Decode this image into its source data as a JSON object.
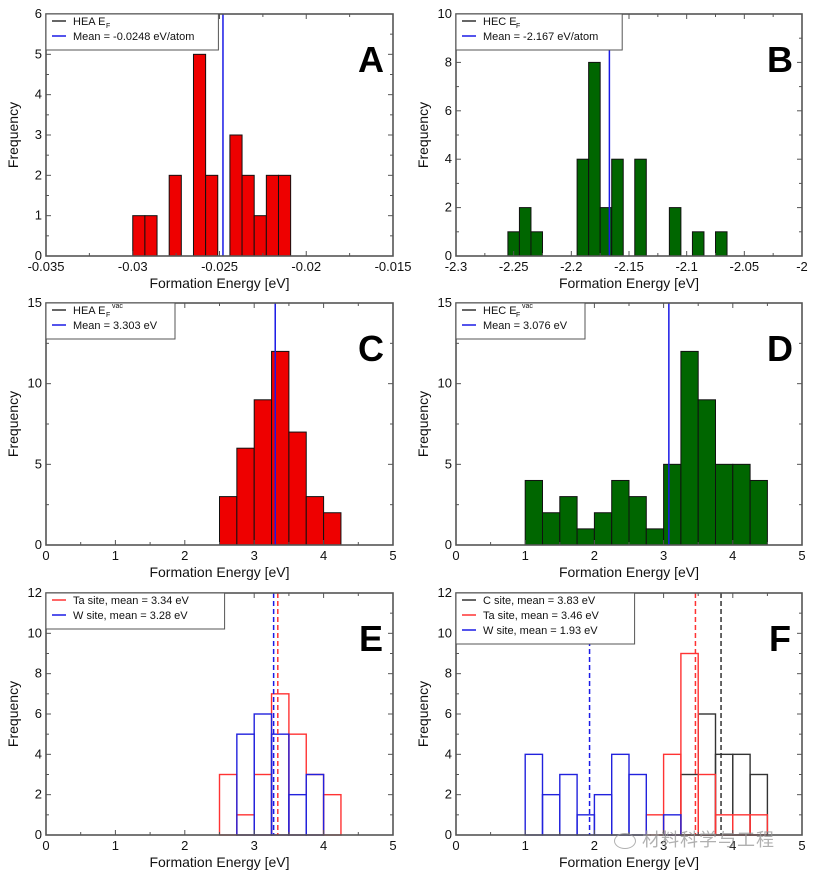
{
  "figure": {
    "watermark_text": "材料科学与工程",
    "colors": {
      "red_fill": "#ee0000",
      "green_fill": "#006600",
      "mean_blue": "#1a1ae6",
      "step_red": "#ff3333",
      "step_blue": "#2222dd",
      "step_black": "#333333",
      "frame": "#555555"
    }
  },
  "chart_data": [
    {
      "id": "A",
      "type": "bar",
      "style": "filled",
      "fill": "red",
      "panel_letter": "A",
      "xlabel": "Formation Energy [eV]",
      "ylabel": "Frequency",
      "xlim": [
        -0.035,
        -0.015
      ],
      "ylim": [
        0,
        6
      ],
      "xticks": [
        -0.035,
        -0.03,
        -0.025,
        -0.02,
        -0.015
      ],
      "xtick_labels": [
        "-0.035",
        "-0.03",
        "-0.025",
        "-0.02",
        "-0.015"
      ],
      "yticks": [
        0,
        1,
        2,
        3,
        4,
        5,
        6
      ],
      "ytick_labels": [
        "0",
        "1",
        "2",
        "3",
        "4",
        "5",
        "6"
      ],
      "legend": [
        {
          "label": "HEA E",
          "sub": "F",
          "sup": "",
          "color": "black"
        },
        {
          "label": "Mean = -0.0248 eV/atom",
          "sub": "",
          "sup": "",
          "color": "blue"
        }
      ],
      "legend_position": "top-left",
      "bin_width": 0.0007,
      "series": [
        {
          "name": "HEA E_F",
          "bins": [
            {
              "x0": -0.03,
              "count": 1
            },
            {
              "x0": -0.0293,
              "count": 1
            },
            {
              "x0": -0.0279,
              "count": 2
            },
            {
              "x0": -0.0265,
              "count": 5
            },
            {
              "x0": -0.0258,
              "count": 2
            },
            {
              "x0": -0.0244,
              "count": 3
            },
            {
              "x0": -0.0237,
              "count": 2
            },
            {
              "x0": -0.023,
              "count": 1
            },
            {
              "x0": -0.0223,
              "count": 2
            },
            {
              "x0": -0.0216,
              "count": 2
            }
          ]
        }
      ],
      "mean_lines": [
        {
          "x": -0.0248,
          "color": "blue",
          "dashed": false
        }
      ]
    },
    {
      "id": "B",
      "type": "bar",
      "style": "filled",
      "fill": "green",
      "panel_letter": "B",
      "xlabel": "Formation Energy [eV]",
      "ylabel": "Frequency",
      "xlim": [
        -2.3,
        -2.0
      ],
      "ylim": [
        0,
        10
      ],
      "xticks": [
        -2.3,
        -2.25,
        -2.2,
        -2.15,
        -2.1,
        -2.05,
        -2.0
      ],
      "xtick_labels": [
        "-2.3",
        "-2.25",
        "-2.2",
        "-2.15",
        "-2.1",
        "-2.05",
        "-2"
      ],
      "yticks": [
        0,
        2,
        4,
        6,
        8,
        10
      ],
      "ytick_labels": [
        "0",
        "2",
        "4",
        "6",
        "8",
        "10"
      ],
      "legend": [
        {
          "label": "HEC E",
          "sub": "F",
          "sup": "",
          "color": "black"
        },
        {
          "label": "Mean = -2.167 eV/atom",
          "sub": "",
          "sup": "",
          "color": "blue"
        }
      ],
      "legend_position": "top-left",
      "bin_width": 0.01,
      "series": [
        {
          "name": "HEC E_F",
          "bins": [
            {
              "x0": -2.255,
              "count": 1
            },
            {
              "x0": -2.245,
              "count": 2
            },
            {
              "x0": -2.235,
              "count": 1
            },
            {
              "x0": -2.195,
              "count": 4
            },
            {
              "x0": -2.185,
              "count": 8
            },
            {
              "x0": -2.175,
              "count": 2
            },
            {
              "x0": -2.165,
              "count": 4
            },
            {
              "x0": -2.145,
              "count": 4
            },
            {
              "x0": -2.115,
              "count": 2
            },
            {
              "x0": -2.095,
              "count": 1
            },
            {
              "x0": -2.075,
              "count": 1
            }
          ]
        }
      ],
      "mean_lines": [
        {
          "x": -2.167,
          "color": "blue",
          "dashed": false
        }
      ]
    },
    {
      "id": "C",
      "type": "bar",
      "style": "filled",
      "fill": "red",
      "panel_letter": "C",
      "xlabel": "Formation Energy [eV]",
      "ylabel": "Frequency",
      "xlim": [
        0,
        5
      ],
      "ylim": [
        0,
        15
      ],
      "xticks": [
        0,
        1,
        2,
        3,
        4,
        5
      ],
      "xtick_labels": [
        "0",
        "1",
        "2",
        "3",
        "4",
        "5"
      ],
      "yticks": [
        0,
        5,
        10,
        15
      ],
      "ytick_labels": [
        "0",
        "5",
        "10",
        "15"
      ],
      "legend": [
        {
          "label": "HEA E",
          "sub": "F",
          "sup": "vac",
          "color": "black"
        },
        {
          "label": "Mean = 3.303 eV",
          "sub": "",
          "sup": "",
          "color": "blue"
        }
      ],
      "legend_position": "top-left",
      "bin_width": 0.25,
      "series": [
        {
          "name": "HEA E_F^vac",
          "bins": [
            {
              "x0": 2.5,
              "count": 3
            },
            {
              "x0": 2.75,
              "count": 6
            },
            {
              "x0": 3.0,
              "count": 9
            },
            {
              "x0": 3.25,
              "count": 12
            },
            {
              "x0": 3.5,
              "count": 7
            },
            {
              "x0": 3.75,
              "count": 3
            },
            {
              "x0": 4.0,
              "count": 2
            }
          ]
        }
      ],
      "mean_lines": [
        {
          "x": 3.303,
          "color": "blue",
          "dashed": false
        }
      ]
    },
    {
      "id": "D",
      "type": "bar",
      "style": "filled",
      "fill": "green",
      "panel_letter": "D",
      "xlabel": "Formation Energy [eV]",
      "ylabel": "Frequency",
      "xlim": [
        0,
        5
      ],
      "ylim": [
        0,
        15
      ],
      "xticks": [
        0,
        1,
        2,
        3,
        4,
        5
      ],
      "xtick_labels": [
        "0",
        "1",
        "2",
        "3",
        "4",
        "5"
      ],
      "yticks": [
        0,
        5,
        10,
        15
      ],
      "ytick_labels": [
        "0",
        "5",
        "10",
        "15"
      ],
      "legend": [
        {
          "label": "HEC E",
          "sub": "F",
          "sup": "vac",
          "color": "black"
        },
        {
          "label": "Mean = 3.076 eV",
          "sub": "",
          "sup": "",
          "color": "blue"
        }
      ],
      "legend_position": "top-left",
      "bin_width": 0.25,
      "series": [
        {
          "name": "HEC E_F^vac",
          "bins": [
            {
              "x0": 1.0,
              "count": 4
            },
            {
              "x0": 1.25,
              "count": 2
            },
            {
              "x0": 1.5,
              "count": 3
            },
            {
              "x0": 1.75,
              "count": 1
            },
            {
              "x0": 2.0,
              "count": 2
            },
            {
              "x0": 2.25,
              "count": 4
            },
            {
              "x0": 2.5,
              "count": 3
            },
            {
              "x0": 2.75,
              "count": 1
            },
            {
              "x0": 3.0,
              "count": 5
            },
            {
              "x0": 3.25,
              "count": 12
            },
            {
              "x0": 3.5,
              "count": 9
            },
            {
              "x0": 3.75,
              "count": 5
            },
            {
              "x0": 4.0,
              "count": 5
            },
            {
              "x0": 4.25,
              "count": 4
            }
          ]
        }
      ],
      "mean_lines": [
        {
          "x": 3.076,
          "color": "blue",
          "dashed": false
        }
      ]
    },
    {
      "id": "E",
      "type": "bar",
      "style": "step",
      "panel_letter": "E",
      "xlabel": "Formation Energy [eV]",
      "ylabel": "Frequency",
      "xlim": [
        0,
        5
      ],
      "ylim": [
        0,
        12
      ],
      "xticks": [
        0,
        1,
        2,
        3,
        4,
        5
      ],
      "xtick_labels": [
        "0",
        "1",
        "2",
        "3",
        "4",
        "5"
      ],
      "yticks": [
        0,
        2,
        4,
        6,
        8,
        10,
        12
      ],
      "ytick_labels": [
        "0",
        "2",
        "4",
        "6",
        "8",
        "10",
        "12"
      ],
      "legend": [
        {
          "label": "Ta site, mean = 3.34 eV",
          "sub": "",
          "sup": "",
          "color": "red"
        },
        {
          "label": "W site, mean = 3.28 eV",
          "sub": "",
          "sup": "",
          "color": "blue"
        }
      ],
      "legend_position": "top-left",
      "bin_width": 0.25,
      "series": [
        {
          "name": "Ta site",
          "color": "red",
          "bins": [
            {
              "x0": 2.5,
              "count": 3
            },
            {
              "x0": 2.75,
              "count": 1
            },
            {
              "x0": 3.0,
              "count": 3
            },
            {
              "x0": 3.25,
              "count": 7
            },
            {
              "x0": 3.5,
              "count": 5
            },
            {
              "x0": 3.75,
              "count": 3
            },
            {
              "x0": 4.0,
              "count": 2
            }
          ]
        },
        {
          "name": "W site",
          "color": "blue",
          "bins": [
            {
              "x0": 2.75,
              "count": 5
            },
            {
              "x0": 3.0,
              "count": 6
            },
            {
              "x0": 3.25,
              "count": 5
            },
            {
              "x0": 3.5,
              "count": 2
            },
            {
              "x0": 3.75,
              "count": 3
            }
          ]
        }
      ],
      "mean_lines": [
        {
          "x": 3.34,
          "color": "red",
          "dashed": true
        },
        {
          "x": 3.28,
          "color": "blue",
          "dashed": true
        }
      ]
    },
    {
      "id": "F",
      "type": "bar",
      "style": "step",
      "panel_letter": "F",
      "xlabel": "Formation Energy [eV]",
      "ylabel": "Frequency",
      "xlim": [
        0,
        5
      ],
      "ylim": [
        0,
        12
      ],
      "xticks": [
        0,
        1,
        2,
        3,
        4,
        5
      ],
      "xtick_labels": [
        "0",
        "1",
        "2",
        "3",
        "4",
        "5"
      ],
      "yticks": [
        0,
        2,
        4,
        6,
        8,
        10,
        12
      ],
      "ytick_labels": [
        "0",
        "2",
        "4",
        "6",
        "8",
        "10",
        "12"
      ],
      "legend": [
        {
          "label": "C site, mean = 3.83 eV",
          "sub": "",
          "sup": "",
          "color": "black"
        },
        {
          "label": "Ta site, mean = 3.46 eV",
          "sub": "",
          "sup": "",
          "color": "red"
        },
        {
          "label": "W site, mean = 1.93 eV",
          "sub": "",
          "sup": "",
          "color": "blue"
        }
      ],
      "legend_position": "top-left",
      "bin_width": 0.25,
      "series": [
        {
          "name": "C site",
          "color": "black",
          "bins": [
            {
              "x0": 3.25,
              "count": 3
            },
            {
              "x0": 3.5,
              "count": 6
            },
            {
              "x0": 3.75,
              "count": 4
            },
            {
              "x0": 4.0,
              "count": 4
            },
            {
              "x0": 4.25,
              "count": 3
            }
          ]
        },
        {
          "name": "Ta site",
          "color": "red",
          "bins": [
            {
              "x0": 2.75,
              "count": 1
            },
            {
              "x0": 3.0,
              "count": 4
            },
            {
              "x0": 3.25,
              "count": 9
            },
            {
              "x0": 3.5,
              "count": 3
            },
            {
              "x0": 3.75,
              "count": 1
            },
            {
              "x0": 4.0,
              "count": 1
            },
            {
              "x0": 4.25,
              "count": 1
            }
          ]
        },
        {
          "name": "W site",
          "color": "blue",
          "bins": [
            {
              "x0": 1.0,
              "count": 4
            },
            {
              "x0": 1.25,
              "count": 2
            },
            {
              "x0": 1.5,
              "count": 3
            },
            {
              "x0": 1.75,
              "count": 1
            },
            {
              "x0": 2.0,
              "count": 2
            },
            {
              "x0": 2.25,
              "count": 4
            },
            {
              "x0": 2.5,
              "count": 3
            },
            {
              "x0": 3.0,
              "count": 1
            }
          ]
        }
      ],
      "mean_lines": [
        {
          "x": 1.93,
          "color": "blue",
          "dashed": true
        },
        {
          "x": 3.46,
          "color": "red",
          "dashed": true
        },
        {
          "x": 3.83,
          "color": "black",
          "dashed": true
        }
      ]
    }
  ]
}
